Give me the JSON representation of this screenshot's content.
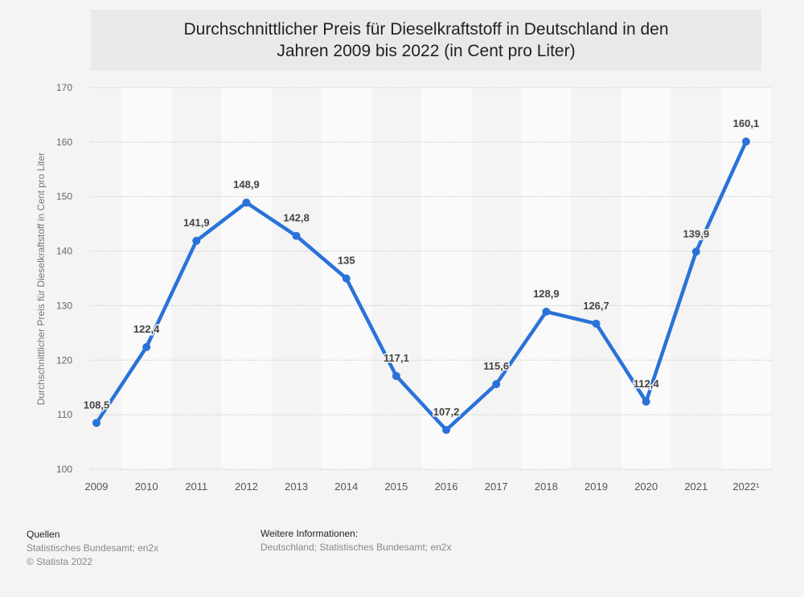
{
  "chart_data": {
    "type": "line",
    "title": "Durchschnittlicher Preis für Dieselkraftstoff in Deutschland in den Jahren 2009 bis 2022 (in Cent pro Liter)",
    "xlabel": "",
    "ylabel": "Durchschnittlicher Preis für Dieselkraftstoff in Cent pro Liter",
    "categories": [
      "2009",
      "2010",
      "2011",
      "2012",
      "2013",
      "2014",
      "2015",
      "2016",
      "2017",
      "2018",
      "2019",
      "2020",
      "2021",
      "2022¹"
    ],
    "values": [
      108.5,
      122.4,
      141.9,
      148.9,
      142.8,
      135,
      117.1,
      107.2,
      115.6,
      128.9,
      126.7,
      112.4,
      139.9,
      160.1
    ],
    "data_labels": [
      "108,5",
      "122,4",
      "141,9",
      "148,9",
      "142,8",
      "135",
      "117,1",
      "107,2",
      "115,6",
      "128,9",
      "126,7",
      "112,4",
      "139,9",
      "160,1"
    ],
    "ylim": [
      100,
      170
    ],
    "yticks": [
      "100",
      "110",
      "120",
      "130",
      "140",
      "150",
      "160",
      "170"
    ],
    "grid": true,
    "line_color": "#2a72d9"
  },
  "footer": {
    "sources_heading": "Quellen",
    "sources_text": "Statistisches Bundesamt; en2x",
    "copyright": "© Statista 2022",
    "info_heading": "Weitere Informationen:",
    "info_text": "Deutschland; Statistisches Bundesamt; en2x"
  }
}
